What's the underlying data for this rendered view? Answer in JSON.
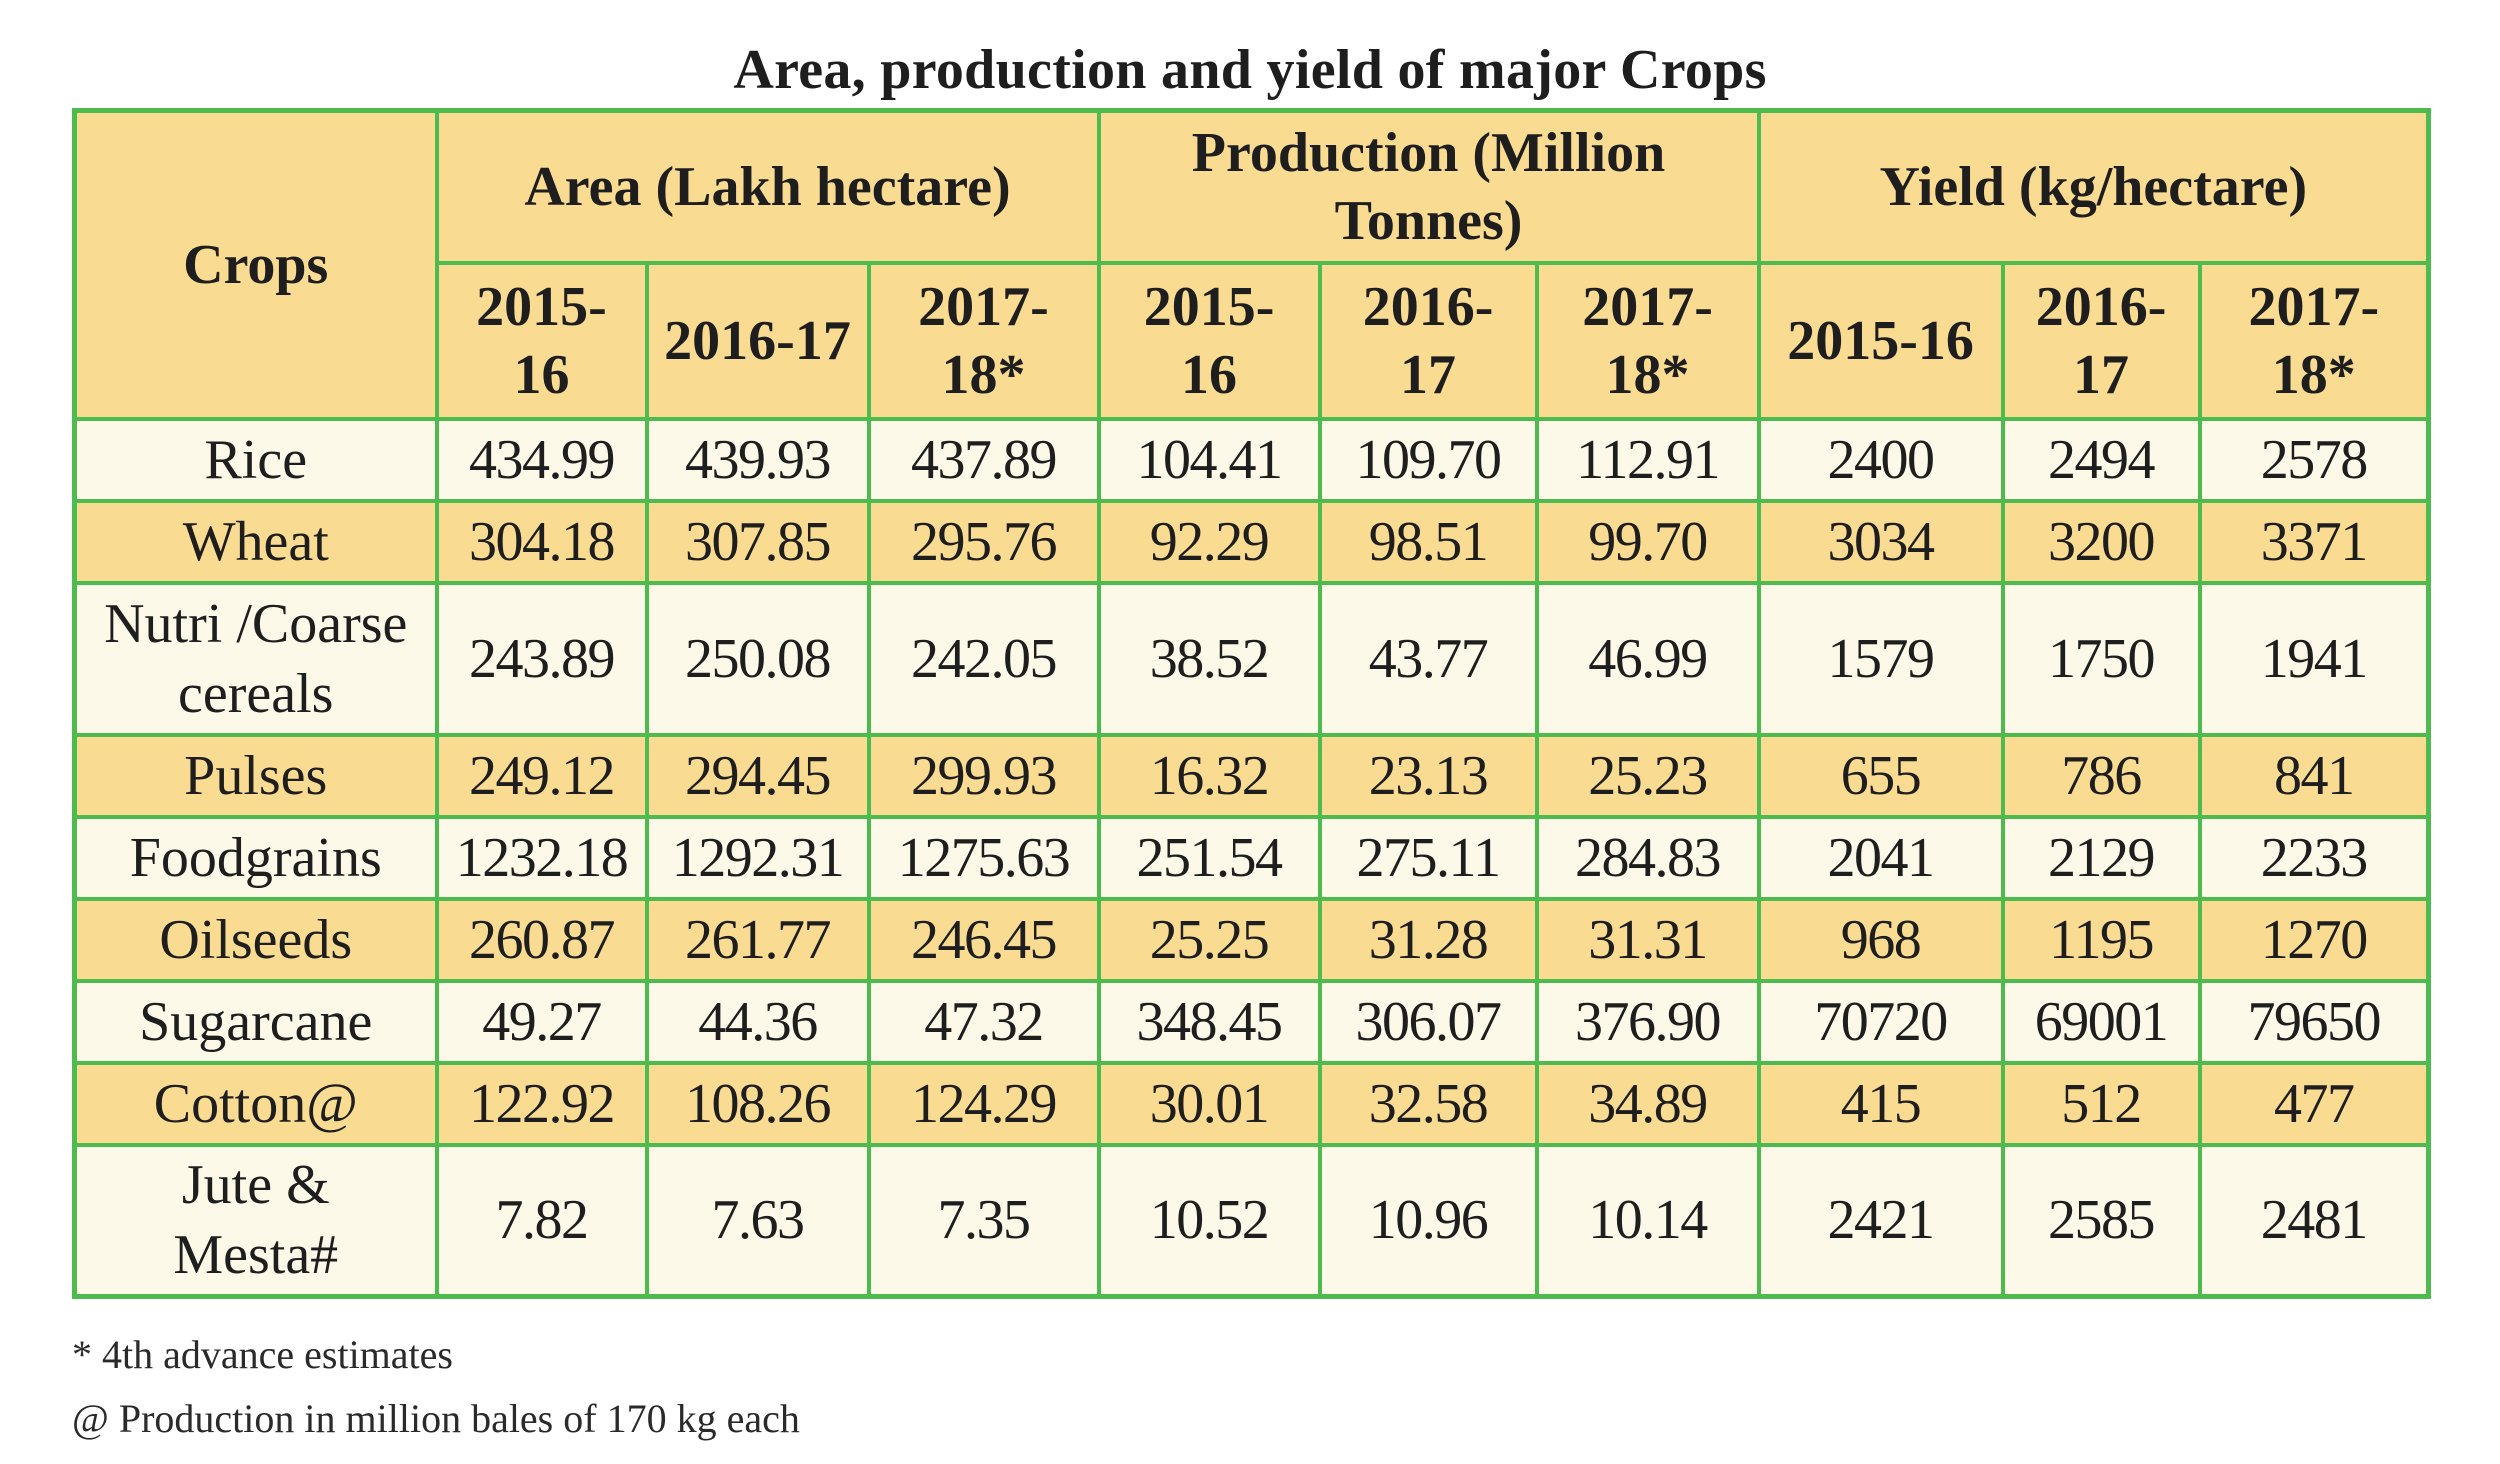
{
  "title": "Area, production and yield of major Crops",
  "table": {
    "crops_header": "Crops",
    "groups": [
      {
        "label": "Area (Lakh hectare)",
        "years": [
          "2015-\n16",
          "2016-17",
          "2017-\n18*"
        ]
      },
      {
        "label": "Production (Million\nTonnes)",
        "years": [
          "2015-\n16",
          "2016-\n17",
          "2017-\n18*"
        ]
      },
      {
        "label": "Yield (kg/hectare)",
        "years": [
          "2015-16",
          "2016-\n17",
          "2017-\n18*"
        ]
      }
    ],
    "rows": [
      {
        "crop": "Rice",
        "values": [
          "434.99",
          "439.93",
          "437.89",
          "104.41",
          "109.70",
          "112.91",
          "2400",
          "2494",
          "2578"
        ]
      },
      {
        "crop": "Wheat",
        "values": [
          "304.18",
          "307.85",
          "295.76",
          "92.29",
          "98.51",
          "99.70",
          "3034",
          "3200",
          "3371"
        ]
      },
      {
        "crop": "Nutri /Coarse\ncereals",
        "values": [
          "243.89",
          "250.08",
          "242.05",
          "38.52",
          "43.77",
          "46.99",
          "1579",
          "1750",
          "1941"
        ]
      },
      {
        "crop": "Pulses",
        "values": [
          "249.12",
          "294.45",
          "299.93",
          "16.32",
          "23.13",
          "25.23",
          "655",
          "786",
          "841"
        ]
      },
      {
        "crop": "Foodgrains",
        "values": [
          "1232.18",
          "1292.31",
          "1275.63",
          "251.54",
          "275.11",
          "284.83",
          "2041",
          "2129",
          "2233"
        ]
      },
      {
        "crop": "Oilseeds",
        "values": [
          "260.87",
          "261.77",
          "246.45",
          "25.25",
          "31.28",
          "31.31",
          "968",
          "1195",
          "1270"
        ]
      },
      {
        "crop": "Sugarcane",
        "values": [
          "49.27",
          "44.36",
          "47.32",
          "348.45",
          "306.07",
          "376.90",
          "70720",
          "69001",
          "79650"
        ]
      },
      {
        "crop": "Cotton@",
        "values": [
          "122.92",
          "108.26",
          "124.29",
          "30.01",
          "32.58",
          "34.89",
          "415",
          "512",
          "477"
        ]
      },
      {
        "crop": "Jute &\nMesta#",
        "values": [
          "7.82",
          "7.63",
          "7.35",
          "10.52",
          "10.96",
          "10.14",
          "2421",
          "2585",
          "2481"
        ]
      }
    ]
  },
  "footnotes": [
    "* 4th advance estimates",
    "@ Production in million bales of 170 kg each"
  ],
  "colors": {
    "header_fill": "#fadb92",
    "light_row_fill": "#fdf9e8",
    "border": "#4dbb4d"
  }
}
